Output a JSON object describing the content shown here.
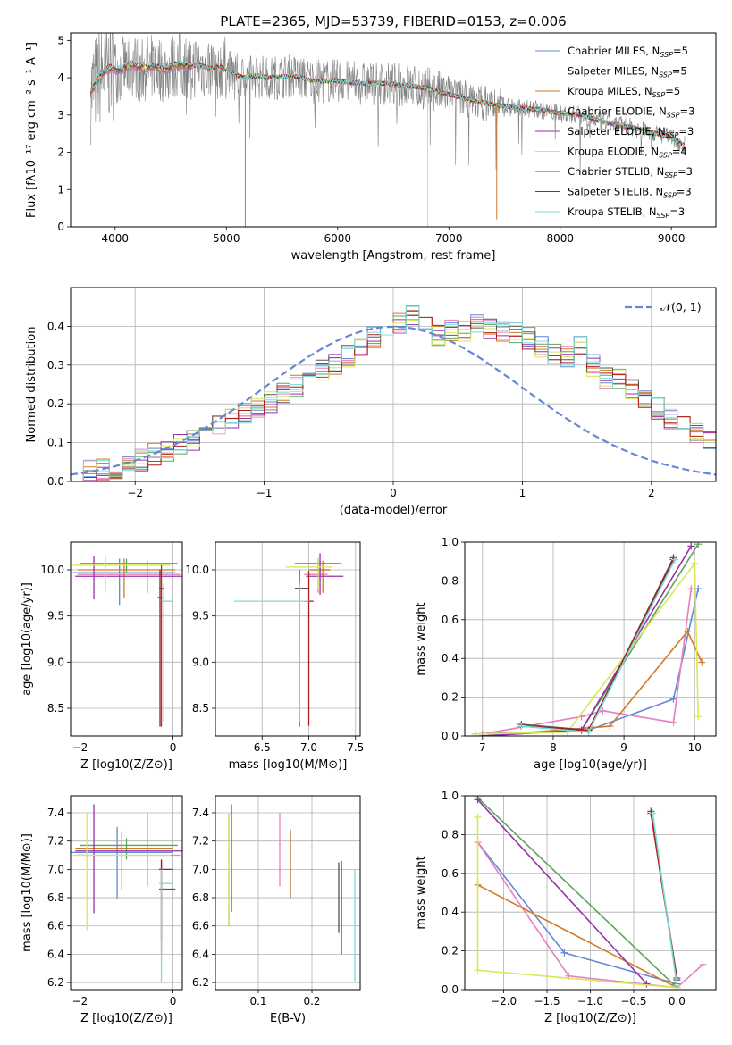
{
  "figure": {
    "title": "PLATE=2365, MJD=53739, FIBERID=0153, z=0.006"
  },
  "chart_data": [
    {
      "id": "spectrum",
      "type": "line",
      "xlabel": "wavelength [Angstrom, rest frame]",
      "ylabel": "Flux [fλ10⁻¹⁷ erg cm⁻² s⁻¹ A⁻¹]",
      "xlim": [
        3600,
        9400
      ],
      "ylim": [
        0,
        5.2
      ],
      "xticks": [
        4000,
        5000,
        6000,
        7000,
        8000,
        9000
      ],
      "yticks": [
        0,
        1,
        2,
        3,
        4,
        5
      ],
      "legend_position": "top-right",
      "continuum": {
        "x": [
          3780,
          3850,
          3950,
          4050,
          4150,
          4250,
          4350,
          4450,
          4550,
          4650,
          4750,
          4850,
          4950,
          5050,
          5150,
          5250,
          5400,
          5600,
          5800,
          6000,
          6200,
          6400,
          6600,
          6800,
          7000,
          7200,
          7400,
          7600,
          7800,
          8000,
          8200,
          8400,
          8600,
          8800,
          9000,
          9120
        ],
        "y": [
          3.6,
          4.0,
          4.25,
          4.2,
          4.35,
          4.25,
          4.3,
          4.2,
          4.35,
          4.3,
          4.35,
          4.25,
          4.3,
          4.15,
          4.0,
          4.05,
          4.0,
          4.05,
          3.9,
          3.92,
          3.85,
          3.85,
          3.8,
          3.72,
          3.55,
          3.4,
          3.28,
          3.2,
          3.15,
          3.05,
          3.0,
          2.8,
          2.7,
          2.55,
          2.4,
          2.2
        ]
      },
      "absorption_spikes": [
        {
          "x": 5170,
          "y": 0
        },
        {
          "x": 6810,
          "y": 0
        },
        {
          "x": 7430,
          "y": 0.2
        }
      ],
      "series": [
        {
          "name": "Chabrier MILES, N",
          "sub": "SSP",
          "suffix": "=5",
          "color": "#6488d6"
        },
        {
          "name": "Salpeter MILES, N",
          "sub": "SSP",
          "suffix": "=5",
          "color": "#e67fbd"
        },
        {
          "name": "Kroupa MILES, N",
          "sub": "SSP",
          "suffix": "=5",
          "color": "#d17a26"
        },
        {
          "name": "Chabrier ELODIE, N",
          "sub": "SSP",
          "suffix": "=3",
          "color": "#5ea45a"
        },
        {
          "name": "Salpeter ELODIE, N",
          "sub": "SSP",
          "suffix": "=3",
          "color": "#9832a8"
        },
        {
          "name": "Kroupa ELODIE, N",
          "sub": "SSP",
          "suffix": "=4",
          "color": "#d9e65a"
        },
        {
          "name": "Chabrier STELIB, N",
          "sub": "SSP",
          "suffix": "=3",
          "color": "#555555"
        },
        {
          "name": "Salpeter STELIB, N",
          "sub": "SSP",
          "suffix": "=3",
          "color": "#b01c1c"
        },
        {
          "name": "Kroupa STELIB, N",
          "sub": "SSP",
          "suffix": "=3",
          "color": "#78dcd8"
        }
      ]
    },
    {
      "id": "residuals",
      "type": "histogram",
      "xlabel": "(data-model)/error",
      "ylabel": "Normed distribution",
      "xlim": [
        -2.5,
        2.5
      ],
      "ylim": [
        0,
        0.5
      ],
      "xticks": [
        -2,
        -1,
        0,
        1,
        2
      ],
      "yticks": [
        0.0,
        0.1,
        0.2,
        0.3,
        0.4
      ],
      "grid": true,
      "legend_position": "top-right",
      "legend_label": "𝒩(0, 1)",
      "bin_width": 0.1,
      "bin_start": -2.5,
      "values": [
        0.02,
        0.025,
        0.03,
        0.035,
        0.045,
        0.055,
        0.07,
        0.08,
        0.095,
        0.11,
        0.125,
        0.14,
        0.16,
        0.175,
        0.19,
        0.205,
        0.225,
        0.245,
        0.265,
        0.285,
        0.305,
        0.325,
        0.35,
        0.37,
        0.38,
        0.41,
        0.43,
        0.42,
        0.38,
        0.39,
        0.385,
        0.4,
        0.39,
        0.39,
        0.385,
        0.37,
        0.35,
        0.33,
        0.32,
        0.35,
        0.3,
        0.27,
        0.26,
        0.24,
        0.215,
        0.19,
        0.165,
        0.145,
        0.125,
        0.11,
        0.09,
        0.08,
        0.07,
        0.06,
        0.05,
        0.045,
        0.04,
        0.035,
        0.03,
        0.025,
        0.02
      ],
      "gaussian": {
        "mu": 0,
        "sigma": 1,
        "color": "#6488d6"
      }
    },
    {
      "id": "age_vs_Z",
      "type": "errorbar",
      "xlabel": "Z [log10(Z/Z⊙)]",
      "ylabel": "age  [log10(age/yr)]",
      "xlim": [
        -2.2,
        0.2
      ],
      "ylim": [
        8.2,
        10.3
      ],
      "xticks": [
        -2,
        0
      ],
      "yticks": [
        8.5,
        9.0,
        9.5,
        10.0
      ],
      "grid": true,
      "points": [
        {
          "x": -1.15,
          "y": 9.97,
          "xerr": [
            1.0,
            1.2
          ],
          "yerr": [
            0.35,
            0.15
          ],
          "color": "#6488d6"
        },
        {
          "x": -0.55,
          "y": 9.95,
          "xerr": [
            1.5,
            0.7
          ],
          "yerr": [
            0.2,
            0.15
          ],
          "color": "#e67fbd"
        },
        {
          "x": -1.05,
          "y": 10.0,
          "xerr": [
            1.0,
            1.1
          ],
          "yerr": [
            0.3,
            0.12
          ],
          "color": "#d17a26"
        },
        {
          "x": -1.0,
          "y": 10.07,
          "xerr": [
            1.0,
            1.1
          ],
          "yerr": [
            0.1,
            0.05
          ],
          "color": "#5ea45a"
        },
        {
          "x": -1.7,
          "y": 9.93,
          "xerr": [
            0.4,
            1.9
          ],
          "yerr": [
            0.25,
            0.22
          ],
          "color": "#9832a8"
        },
        {
          "x": -1.45,
          "y": 10.05,
          "xerr": [
            0.7,
            1.4
          ],
          "yerr": [
            0.3,
            0.1
          ],
          "color": "#d9e65a"
        },
        {
          "x": -0.25,
          "y": 9.8,
          "xerr": [
            0.05,
            0.05
          ],
          "yerr": [
            1.5,
            0.25
          ],
          "color": "#555555"
        },
        {
          "x": -0.28,
          "y": 9.7,
          "xerr": [
            0.05,
            0.05
          ],
          "yerr": [
            1.4,
            0.3
          ],
          "color": "#b01c1c"
        },
        {
          "x": -0.2,
          "y": 9.66,
          "xerr": [
            0.05,
            0.2
          ],
          "yerr": [
            1.3,
            0.2
          ],
          "color": "#78dcd8"
        }
      ]
    },
    {
      "id": "age_vs_mass",
      "type": "errorbar",
      "xlabel": "mass [log10(M/M⊙)]",
      "ylabel": "",
      "xlim": [
        6.0,
        7.55
      ],
      "ylim": [
        8.2,
        10.3
      ],
      "xticks": [
        6.5,
        7.0,
        7.5
      ],
      "yticks": [
        8.5,
        9.0,
        9.5,
        10.0
      ],
      "grid": true,
      "points": [
        {
          "x": 7.12,
          "y": 10.0,
          "xerr": [
            0.1,
            0.1
          ],
          "yerr": [
            0.1,
            0.1
          ],
          "color": "#6488d6"
        },
        {
          "x": 7.1,
          "y": 9.95,
          "xerr": [
            0.15,
            0.1
          ],
          "yerr": [
            0.2,
            0.15
          ],
          "color": "#e67fbd"
        },
        {
          "x": 7.15,
          "y": 10.0,
          "xerr": [
            0.15,
            0.08
          ],
          "yerr": [
            0.25,
            0.1
          ],
          "color": "#d17a26"
        },
        {
          "x": 7.1,
          "y": 10.07,
          "xerr": [
            0.25,
            0.25
          ],
          "yerr": [
            0.1,
            0.05
          ],
          "color": "#5ea45a"
        },
        {
          "x": 7.12,
          "y": 9.93,
          "xerr": [
            0.15,
            0.25
          ],
          "yerr": [
            0.2,
            0.25
          ],
          "color": "#9832a8"
        },
        {
          "x": 7.1,
          "y": 10.03,
          "xerr": [
            0.35,
            0.15
          ],
          "yerr": [
            0.25,
            0.1
          ],
          "color": "#d9e65a"
        },
        {
          "x": 6.9,
          "y": 9.8,
          "xerr": [
            0.05,
            0.1
          ],
          "yerr": [
            1.5,
            0.2
          ],
          "color": "#555555"
        },
        {
          "x": 7.0,
          "y": 9.66,
          "xerr": [
            0.05,
            0.05
          ],
          "yerr": [
            1.35,
            0.33
          ],
          "color": "#b01c1c"
        },
        {
          "x": 6.9,
          "y": 9.66,
          "xerr": [
            0.7,
            0.1
          ],
          "yerr": [
            1.3,
            0.2
          ],
          "color": "#78dcd8"
        }
      ]
    },
    {
      "id": "weight_vs_age",
      "type": "line",
      "xlabel": "age  [log10(age/yr)]",
      "ylabel": "mass weight",
      "xlim": [
        6.75,
        10.3
      ],
      "ylim": [
        0,
        1.0
      ],
      "xticks": [
        7,
        8,
        9,
        10
      ],
      "yticks": [
        0.0,
        0.2,
        0.4,
        0.6,
        0.8,
        1.0
      ],
      "grid": true,
      "series": [
        {
          "color": "#6488d6",
          "x": [
            6.9,
            8.5,
            9.7,
            10.05
          ],
          "y": [
            0.01,
            0.03,
            0.19,
            0.76
          ]
        },
        {
          "color": "#e67fbd",
          "x": [
            7.0,
            8.4,
            8.7,
            9.7,
            9.95
          ],
          "y": [
            0.01,
            0.1,
            0.13,
            0.07,
            0.76
          ]
        },
        {
          "color": "#d17a26",
          "x": [
            7.0,
            8.8,
            9.9,
            10.1
          ],
          "y": [
            0.0,
            0.05,
            0.54,
            0.38
          ]
        },
        {
          "color": "#5ea45a",
          "x": [
            7.0,
            8.4,
            10.05
          ],
          "y": [
            0.0,
            0.03,
            0.99
          ]
        },
        {
          "color": "#9832a8",
          "x": [
            7.0,
            8.4,
            9.95
          ],
          "y": [
            0.0,
            0.03,
            0.98
          ]
        },
        {
          "color": "#d9e65a",
          "x": [
            6.9,
            8.2,
            10.0,
            10.05
          ],
          "y": [
            0.01,
            0.02,
            0.89,
            0.1
          ]
        },
        {
          "color": "#555555",
          "x": [
            7.55,
            8.5,
            9.7
          ],
          "y": [
            0.06,
            0.03,
            0.92
          ]
        },
        {
          "color": "#b01c1c",
          "x": [
            7.55,
            8.5,
            9.7
          ],
          "y": [
            0.05,
            0.03,
            0.91
          ]
        },
        {
          "color": "#78dcd8",
          "x": [
            7.55,
            8.5,
            9.72
          ],
          "y": [
            0.05,
            0.02,
            0.91
          ]
        }
      ]
    },
    {
      "id": "mass_vs_Z",
      "type": "errorbar",
      "xlabel": "Z [log10(Z/Z⊙)]",
      "ylabel": "mass [log10(M/M⊙)]",
      "xlim": [
        -2.2,
        0.2
      ],
      "ylim": [
        6.15,
        7.52
      ],
      "xticks": [
        -2,
        0
      ],
      "yticks": [
        6.2,
        6.4,
        6.6,
        6.8,
        7.0,
        7.2,
        7.4
      ],
      "grid": true,
      "points": [
        {
          "x": -1.2,
          "y": 7.12,
          "xerr": [
            1.0,
            1.2
          ],
          "yerr": [
            0.33,
            0.18
          ],
          "color": "#6488d6"
        },
        {
          "x": -0.55,
          "y": 7.1,
          "xerr": [
            1.5,
            0.7
          ],
          "yerr": [
            0.22,
            0.3
          ],
          "color": "#e67fbd"
        },
        {
          "x": -1.1,
          "y": 7.15,
          "xerr": [
            1.0,
            1.1
          ],
          "yerr": [
            0.3,
            0.12
          ],
          "color": "#d17a26"
        },
        {
          "x": -1.0,
          "y": 7.17,
          "xerr": [
            1.0,
            1.1
          ],
          "yerr": [
            0.1,
            0.05
          ],
          "color": "#5ea45a"
        },
        {
          "x": -1.7,
          "y": 7.13,
          "xerr": [
            0.4,
            1.9
          ],
          "yerr": [
            0.44,
            0.33
          ],
          "color": "#9832a8"
        },
        {
          "x": -1.85,
          "y": 7.1,
          "xerr": [
            0.3,
            1.8
          ],
          "yerr": [
            0.53,
            0.3
          ],
          "color": "#d9e65a"
        },
        {
          "x": -0.25,
          "y": 6.86,
          "xerr": [
            0.05,
            0.3
          ],
          "yerr": [
            0.35,
            0.2
          ],
          "color": "#555555"
        },
        {
          "x": -0.25,
          "y": 7.0,
          "xerr": [
            0.05,
            0.25
          ],
          "yerr": [
            0.6,
            0.07
          ],
          "color": "#b01c1c"
        },
        {
          "x": -0.25,
          "y": 6.9,
          "xerr": [
            0.05,
            0.25
          ],
          "yerr": [
            0.7,
            0.1
          ],
          "color": "#78dcd8"
        }
      ]
    },
    {
      "id": "mass_vs_ebv",
      "type": "errorbar",
      "xlabel": "E(B-V)",
      "ylabel": "",
      "xlim": [
        0.02,
        0.29
      ],
      "ylim": [
        6.15,
        7.52
      ],
      "xticks": [
        0.1,
        0.2
      ],
      "yticks": [
        6.2,
        6.4,
        6.6,
        6.8,
        7.0,
        7.2,
        7.4
      ],
      "grid": true,
      "points": [
        {
          "x": 0.16,
          "y": 7.1,
          "xerr": [
            0,
            0
          ],
          "yerr": [
            0.3,
            0.18
          ],
          "color": "#6488d6"
        },
        {
          "x": 0.14,
          "y": 7.1,
          "xerr": [
            0,
            0
          ],
          "yerr": [
            0.22,
            0.3
          ],
          "color": "#e67fbd"
        },
        {
          "x": 0.16,
          "y": 7.1,
          "xerr": [
            0,
            0
          ],
          "yerr": [
            0.3,
            0.17
          ],
          "color": "#d17a26"
        },
        {
          "x": 0.045,
          "y": 7.1,
          "xerr": [
            0,
            0
          ],
          "yerr": [
            0.5,
            0.3
          ],
          "color": "#5ea45a"
        },
        {
          "x": 0.05,
          "y": 7.1,
          "xerr": [
            0,
            0
          ],
          "yerr": [
            0.4,
            0.36
          ],
          "color": "#9832a8"
        },
        {
          "x": 0.045,
          "y": 7.1,
          "xerr": [
            0,
            0
          ],
          "yerr": [
            0.5,
            0.3
          ],
          "color": "#d9e65a"
        },
        {
          "x": 0.25,
          "y": 6.85,
          "xerr": [
            0,
            0
          ],
          "yerr": [
            0.3,
            0.2
          ],
          "color": "#555555"
        },
        {
          "x": 0.255,
          "y": 6.8,
          "xerr": [
            0,
            0
          ],
          "yerr": [
            0.4,
            0.26
          ],
          "color": "#b01c1c"
        },
        {
          "x": 0.28,
          "y": 6.6,
          "xerr": [
            0,
            0
          ],
          "yerr": [
            0.4,
            0.4
          ],
          "color": "#78dcd8"
        }
      ]
    },
    {
      "id": "weight_vs_Z",
      "type": "line",
      "xlabel": "Z [log10(Z/Z⊙)]",
      "ylabel": "mass weight",
      "xlim": [
        -2.45,
        0.45
      ],
      "ylim": [
        0,
        1.0
      ],
      "xticks": [
        -2.0,
        -1.5,
        -1.0,
        -0.5,
        0.0
      ],
      "yticks": [
        0.0,
        0.2,
        0.4,
        0.6,
        0.8,
        1.0
      ],
      "grid": true,
      "series": [
        {
          "color": "#6488d6",
          "x": [
            -2.3,
            -1.3,
            0.0
          ],
          "y": [
            0.76,
            0.19,
            0.03
          ]
        },
        {
          "color": "#e67fbd",
          "x": [
            -2.3,
            -1.25,
            0.0,
            0.3
          ],
          "y": [
            0.76,
            0.07,
            0.01,
            0.13
          ]
        },
        {
          "color": "#d17a26",
          "x": [
            -2.3,
            0.0
          ],
          "y": [
            0.54,
            0.01
          ]
        },
        {
          "color": "#5ea45a",
          "x": [
            -2.3,
            0.0
          ],
          "y": [
            0.99,
            0.01
          ]
        },
        {
          "color": "#9832a8",
          "x": [
            -2.3,
            -0.35
          ],
          "y": [
            0.98,
            0.03
          ]
        },
        {
          "color": "#d9e65a",
          "x": [
            -2.3,
            -2.3,
            0.0
          ],
          "y": [
            0.89,
            0.1,
            0.01
          ]
        },
        {
          "color": "#555555",
          "x": [
            -0.3,
            0.0
          ],
          "y": [
            0.92,
            0.06
          ]
        },
        {
          "color": "#b01c1c",
          "x": [
            -0.3,
            0.0
          ],
          "y": [
            0.91,
            0.05
          ]
        },
        {
          "color": "#78dcd8",
          "x": [
            -0.28,
            0.0
          ],
          "y": [
            0.91,
            0.02
          ]
        }
      ]
    }
  ]
}
